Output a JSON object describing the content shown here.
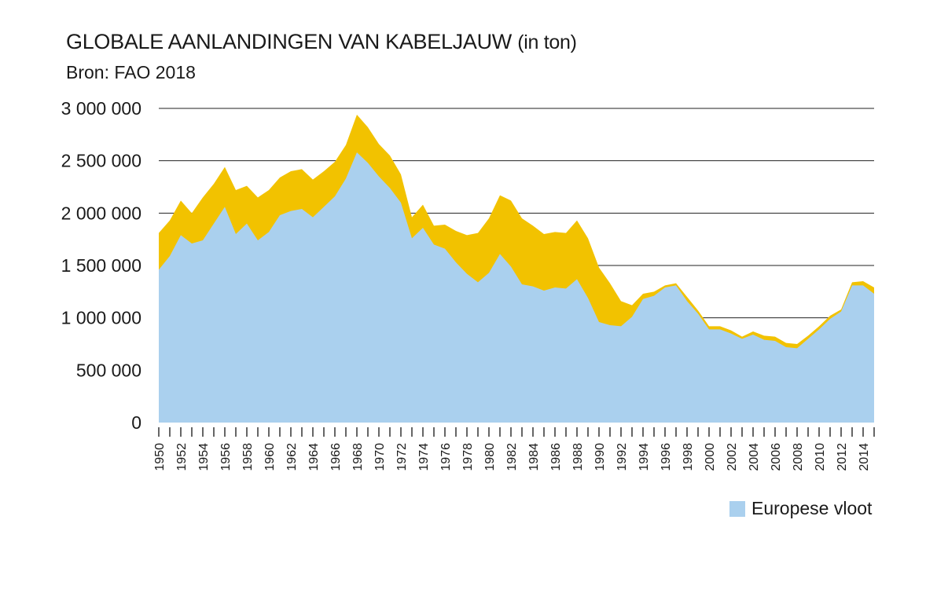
{
  "title": "GLOBALE AANLANDINGEN VAN KABELJAUW",
  "title_unit": "(in ton)",
  "subtitle": "Bron: FAO 2018",
  "legend": {
    "label": "Europese vloot",
    "color": "#aad0ee"
  },
  "colors": {
    "total": "#f2c200",
    "europe": "#aad0ee",
    "grid": "#222222"
  },
  "chart_data": {
    "type": "area",
    "title": "GLOBALE AANLANDINGEN VAN KABELJAUW (in ton)",
    "ylim": [
      0,
      3000000
    ],
    "yticks": [
      0,
      500000,
      1000000,
      1500000,
      2000000,
      2500000,
      3000000
    ],
    "ytick_labels": [
      "0",
      "500 000",
      "1 000 000",
      "1 500 000",
      "2 000 000",
      "2 500 000",
      "3 000 000"
    ],
    "xtick_labels": [
      "1950",
      "1952",
      "1954",
      "1956",
      "1958",
      "1960",
      "1962",
      "1964",
      "1966",
      "1968",
      "1970",
      "1972",
      "1974",
      "1976",
      "1978",
      "1980",
      "1982",
      "1984",
      "1986",
      "1988",
      "1990",
      "1992",
      "1994",
      "1996",
      "1998",
      "2000",
      "2002",
      "2004",
      "2006",
      "2008",
      "2010",
      "2012",
      "2014"
    ],
    "grid": true,
    "legend_position": "bottom-right",
    "x": [
      1950,
      1951,
      1952,
      1953,
      1954,
      1955,
      1956,
      1957,
      1958,
      1959,
      1960,
      1961,
      1962,
      1963,
      1964,
      1965,
      1966,
      1967,
      1968,
      1969,
      1970,
      1971,
      1972,
      1973,
      1974,
      1975,
      1976,
      1977,
      1978,
      1979,
      1980,
      1981,
      1982,
      1983,
      1984,
      1985,
      1986,
      1987,
      1988,
      1989,
      1990,
      1991,
      1992,
      1993,
      1994,
      1995,
      1996,
      1997,
      1998,
      1999,
      2000,
      2001,
      2002,
      2003,
      2004,
      2005,
      2006,
      2007,
      2008,
      2009,
      2010,
      2011,
      2012,
      2013,
      2014,
      2015
    ],
    "series": [
      {
        "values": [
          1810000,
          1930000,
          2120000,
          2000000,
          2150000,
          2280000,
          2440000,
          2220000,
          2260000,
          2150000,
          2220000,
          2340000,
          2400000,
          2420000,
          2320000,
          2400000,
          2490000,
          2650000,
          2940000,
          2820000,
          2660000,
          2550000,
          2370000,
          1960000,
          2080000,
          1880000,
          1890000,
          1830000,
          1790000,
          1810000,
          1950000,
          2170000,
          2120000,
          1950000,
          1880000,
          1800000,
          1820000,
          1810000,
          1930000,
          1760000,
          1480000,
          1330000,
          1160000,
          1120000,
          1230000,
          1250000,
          1310000,
          1330000,
          1200000,
          1070000,
          920000,
          920000,
          880000,
          820000,
          870000,
          830000,
          820000,
          760000,
          750000,
          830000,
          920000,
          1020000,
          1080000,
          1340000,
          1350000,
          1290000
        ]
      },
      {
        "name": "Europese vloot",
        "values": [
          1460000,
          1590000,
          1790000,
          1710000,
          1740000,
          1900000,
          2060000,
          1800000,
          1900000,
          1740000,
          1820000,
          1980000,
          2020000,
          2040000,
          1960000,
          2060000,
          2160000,
          2330000,
          2580000,
          2480000,
          2350000,
          2240000,
          2100000,
          1760000,
          1860000,
          1700000,
          1660000,
          1530000,
          1420000,
          1340000,
          1430000,
          1610000,
          1490000,
          1320000,
          1300000,
          1260000,
          1290000,
          1280000,
          1370000,
          1190000,
          960000,
          930000,
          920000,
          1010000,
          1180000,
          1210000,
          1290000,
          1310000,
          1160000,
          1040000,
          890000,
          890000,
          850000,
          800000,
          840000,
          790000,
          780000,
          720000,
          710000,
          800000,
          890000,
          990000,
          1060000,
          1310000,
          1310000,
          1230000
        ]
      }
    ]
  }
}
